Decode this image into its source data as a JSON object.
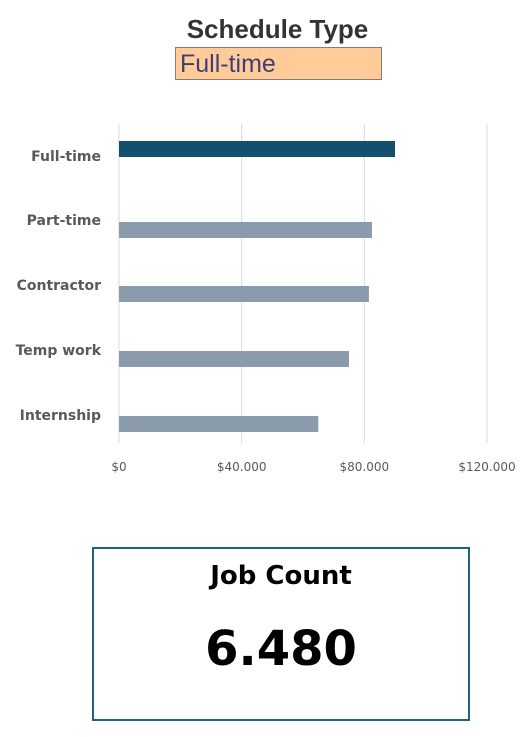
{
  "header": {
    "title": "Schedule Type"
  },
  "slicer": {
    "selected": "Full-time"
  },
  "chart_data": {
    "type": "bar",
    "orientation": "horizontal",
    "categories": [
      "Full-time",
      "Part-time",
      "Contractor",
      "Temp work",
      "Internship"
    ],
    "values": [
      90000,
      82500,
      81500,
      75000,
      65000
    ],
    "highlighted": "Full-time",
    "xlim": [
      0,
      120000
    ],
    "xticks": [
      0,
      40000,
      80000,
      120000
    ],
    "tick_labels": [
      "$0",
      "$40.000",
      "$80.000",
      "$120.000"
    ],
    "grid": true,
    "colors": {
      "highlight": "#134f6e",
      "default": "#8a9bab",
      "grid": "#d9d9d9"
    }
  },
  "kpi": {
    "label": "Job Count",
    "value": "6.480"
  }
}
